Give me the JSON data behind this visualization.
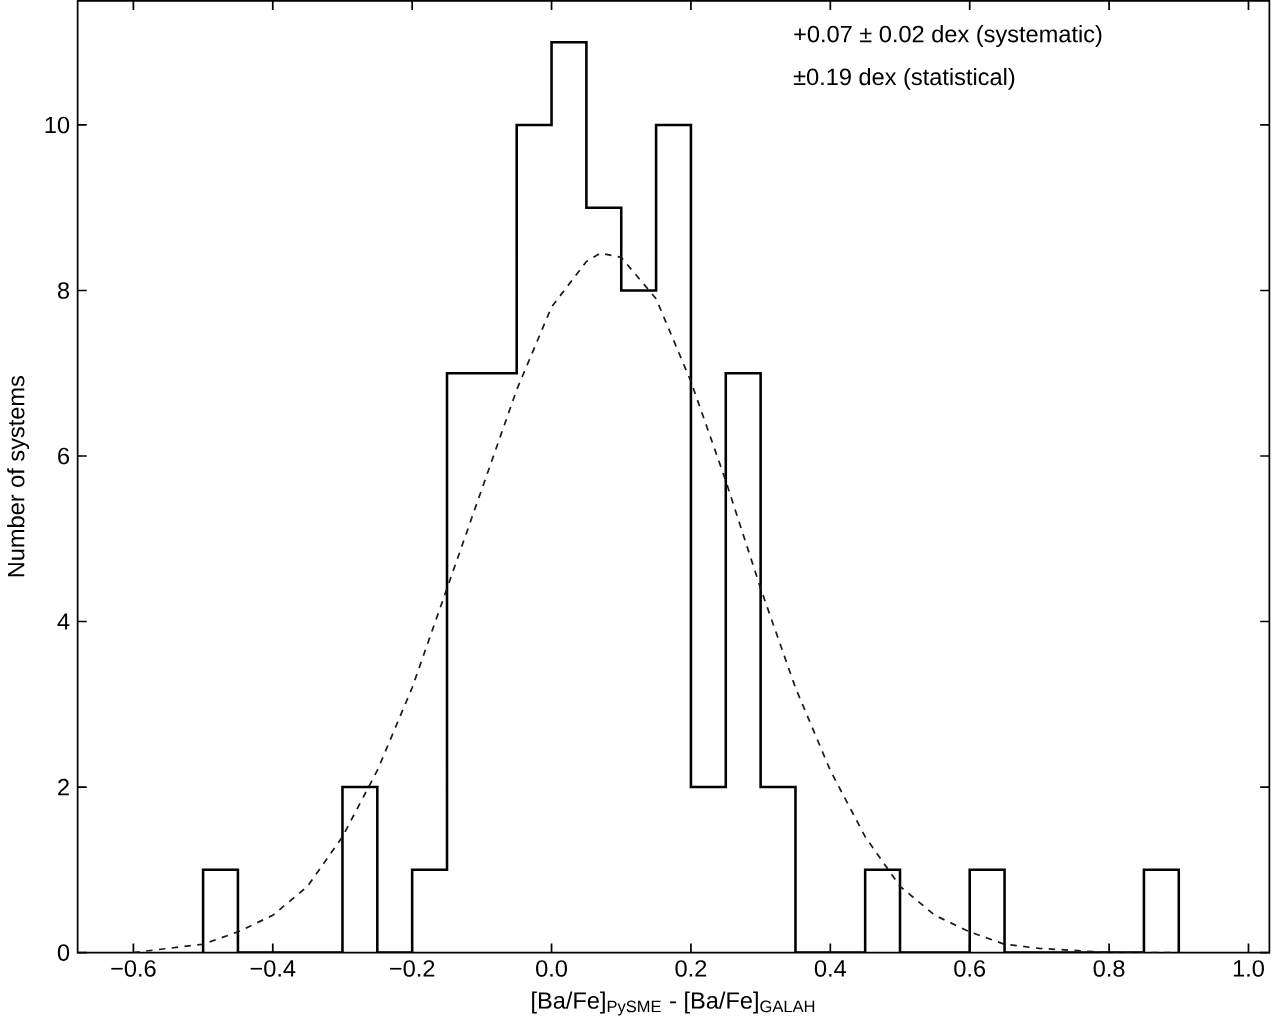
{
  "chart_data": {
    "type": "histogram",
    "xlabel": "[Ba/Fe]$_{PySME}$ - [Ba/Fe]$_{GALAH}$",
    "ylabel": "Number of systems",
    "bins": [
      -0.5,
      -0.45,
      -0.4,
      -0.35,
      -0.3,
      -0.25,
      -0.2,
      -0.15,
      -0.1,
      -0.05,
      0.0,
      0.05,
      0.1,
      0.15,
      0.2,
      0.25,
      0.3,
      0.35,
      0.4,
      0.45,
      0.5,
      0.55,
      0.6,
      0.65,
      0.7,
      0.75,
      0.8,
      0.85,
      0.9
    ],
    "values": [
      1,
      0,
      0,
      0,
      2,
      0,
      1,
      7,
      7,
      10,
      11,
      9,
      8,
      10,
      2,
      7,
      2,
      0,
      0,
      1,
      0,
      0,
      1,
      0,
      0,
      0,
      0,
      1
    ],
    "color": "#000000",
    "series": [
      {
        "type": "line",
        "color": "#1a1a1a",
        "line_style": "dashed",
        "x": [
          -0.6,
          -0.5,
          -0.45,
          -0.4,
          -0.35,
          -0.3,
          -0.25,
          -0.2,
          -0.15,
          -0.1,
          -0.05,
          0.0,
          0.05,
          0.07,
          0.1,
          0.15,
          0.2,
          0.25,
          0.3,
          0.35,
          0.4,
          0.45,
          0.5,
          0.55,
          0.6,
          0.65,
          0.7,
          0.8,
          0.9
        ],
        "values": [
          0.0,
          0.1,
          0.25,
          0.45,
          0.8,
          1.4,
          2.2,
          3.2,
          4.4,
          5.6,
          6.8,
          7.8,
          8.35,
          8.45,
          8.4,
          7.9,
          6.9,
          5.7,
          4.4,
          3.2,
          2.2,
          1.4,
          0.8,
          0.45,
          0.25,
          0.1,
          0.05,
          0.0,
          0.0
        ]
      }
    ],
    "annotations": [
      "+0.07 ± 0.02 dex (systematic)",
      "±0.19 dex (statistical)"
    ],
    "xlim": [
      -0.68,
      1.03
    ],
    "ylim": [
      0,
      11.5
    ],
    "xticks": [
      {
        "value": -0.6,
        "label": "−0.6"
      },
      {
        "value": -0.4,
        "label": "−0.4"
      },
      {
        "value": -0.2,
        "label": "−0.2"
      },
      {
        "value": 0.0,
        "label": "0.0"
      },
      {
        "value": 0.2,
        "label": "0.2"
      },
      {
        "value": 0.4,
        "label": "0.4"
      },
      {
        "value": 0.6,
        "label": "0.6"
      },
      {
        "value": 0.8,
        "label": "0.8"
      },
      {
        "value": 1.0,
        "label": "1.0"
      }
    ],
    "yticks": [
      0,
      2,
      4,
      6,
      8,
      10
    ],
    "grid": false
  }
}
